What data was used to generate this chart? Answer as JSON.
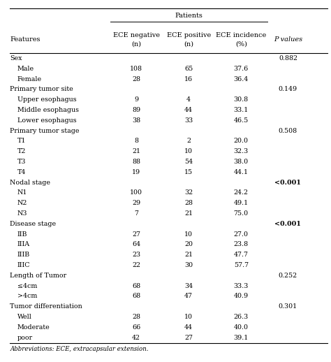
{
  "title_main": "Patients",
  "col_headers": [
    "Features",
    "ECE negative\n(n)",
    "ECE positive\n(n)",
    "ECE incidence\n(%)",
    "P values"
  ],
  "rows": [
    [
      "Sex",
      "",
      "",
      "",
      "0.882"
    ],
    [
      "    Male",
      "108",
      "65",
      "37.6",
      ""
    ],
    [
      "    Female",
      "28",
      "16",
      "36.4",
      ""
    ],
    [
      "Primary tumor site",
      "",
      "",
      "",
      "0.149"
    ],
    [
      "    Upper esophagus",
      "9",
      "4",
      "30.8",
      ""
    ],
    [
      "    Middle esophagus",
      "89",
      "44",
      "33.1",
      ""
    ],
    [
      "    Lower esophagus",
      "38",
      "33",
      "46.5",
      ""
    ],
    [
      "Primary tumor stage",
      "",
      "",
      "",
      "0.508"
    ],
    [
      "    T1",
      "8",
      "2",
      "20.0",
      ""
    ],
    [
      "    T2",
      "21",
      "10",
      "32.3",
      ""
    ],
    [
      "    T3",
      "88",
      "54",
      "38.0",
      ""
    ],
    [
      "    T4",
      "19",
      "15",
      "44.1",
      ""
    ],
    [
      "Nodal stage",
      "",
      "",
      "",
      "<0.001"
    ],
    [
      "    N1",
      "100",
      "32",
      "24.2",
      ""
    ],
    [
      "    N2",
      "29",
      "28",
      "49.1",
      ""
    ],
    [
      "    N3",
      "7",
      "21",
      "75.0",
      ""
    ],
    [
      "Disease stage",
      "",
      "",
      "",
      "<0.001"
    ],
    [
      "    IIB",
      "27",
      "10",
      "27.0",
      ""
    ],
    [
      "    IIIA",
      "64",
      "20",
      "23.8",
      ""
    ],
    [
      "    IIIB",
      "23",
      "21",
      "47.7",
      ""
    ],
    [
      "    IIIC",
      "22",
      "30",
      "57.7",
      ""
    ],
    [
      "Length of Tumor",
      "",
      "",
      "",
      "0.252"
    ],
    [
      "    ≤4cm",
      "68",
      "34",
      "33.3",
      ""
    ],
    [
      "    >4cm",
      "68",
      "47",
      "40.9",
      ""
    ],
    [
      "Tumor differentiation",
      "",
      "",
      "",
      "0.301"
    ],
    [
      "    Well",
      "28",
      "10",
      "26.3",
      ""
    ],
    [
      "    Moderate",
      "66",
      "44",
      "40.0",
      ""
    ],
    [
      "    poor",
      "42",
      "27",
      "39.1",
      ""
    ]
  ],
  "footnote": "Abbreviations: ECE, extracapsular extension.",
  "bg_color": "#ffffff",
  "text_color": "#000000",
  "header_line_color": "#000000",
  "figsize": [
    4.74,
    5.18
  ],
  "dpi": 100
}
